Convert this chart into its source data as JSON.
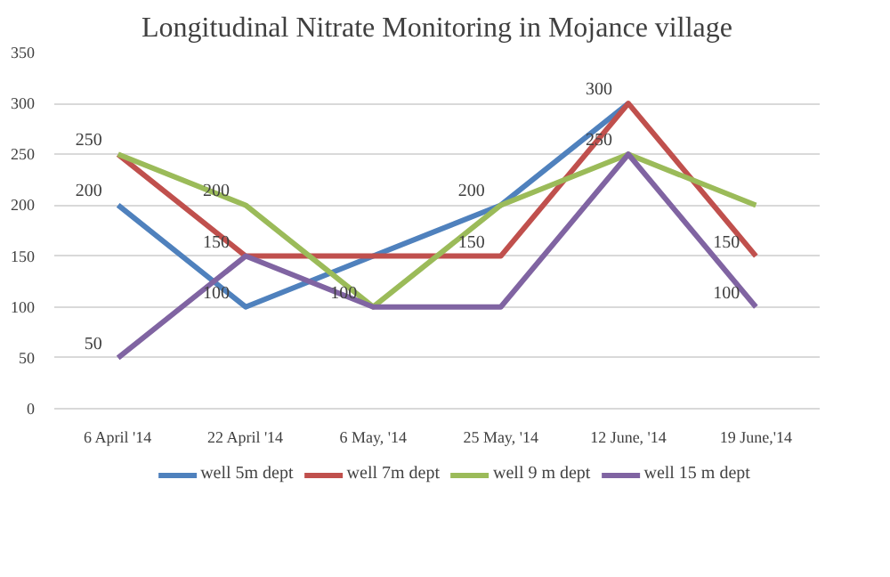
{
  "chart_data": {
    "type": "line",
    "title": "Longitudinal Nitrate Monitoring in Mojance village",
    "categories": [
      "6 April '14",
      "22 April '14",
      "6 May, '14",
      "25 May, '14",
      "12 June, '14",
      "19 June,'14"
    ],
    "series": [
      {
        "name": "well 5m dept",
        "color": "#4f81bd",
        "values": [
          200,
          100,
          150,
          200,
          300,
          null
        ],
        "value_labels": [
          "200",
          "100",
          null,
          "200",
          "300",
          null
        ]
      },
      {
        "name": "well 7m dept",
        "color": "#c0504d",
        "values": [
          250,
          150,
          150,
          150,
          300,
          150
        ],
        "value_labels": [
          null,
          null,
          null,
          "150",
          null,
          "150"
        ]
      },
      {
        "name": "well 9 m dept",
        "color": "#9bbb59",
        "values": [
          250,
          200,
          100,
          200,
          250,
          200
        ],
        "value_labels": [
          "250",
          "200",
          "100",
          null,
          "250",
          null
        ]
      },
      {
        "name": "well 15 m dept",
        "color": "#8064a2",
        "values": [
          50,
          150,
          100,
          100,
          250,
          100
        ],
        "value_labels": [
          "50",
          "150",
          null,
          null,
          null,
          "100"
        ]
      }
    ],
    "ylim": [
      0,
      350
    ],
    "yticks": [
      0,
      50,
      100,
      150,
      200,
      250,
      300,
      350
    ],
    "grid": "y",
    "legend": "bottom",
    "marker": "none",
    "line_style": "solid"
  }
}
